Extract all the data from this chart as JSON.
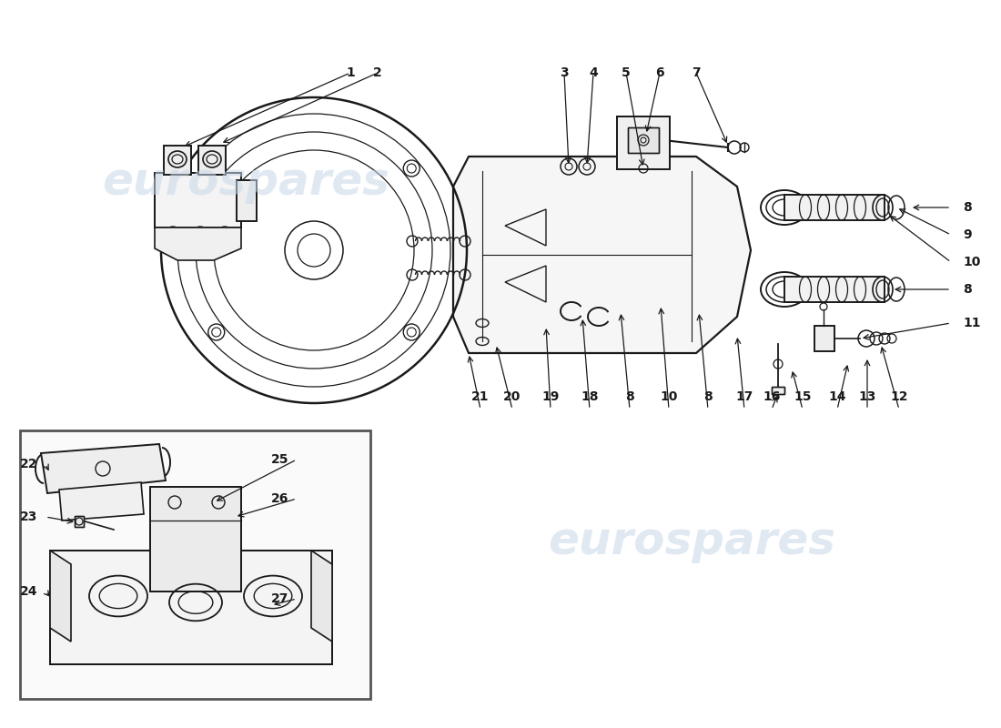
{
  "background_color": "#ffffff",
  "line_color": "#1a1a1a",
  "watermark_text": "eurospares",
  "watermark_color": "#c8d8e8",
  "watermark_alpha": 0.55,
  "fig_width": 11.0,
  "fig_height": 8.0,
  "dpi": 100
}
